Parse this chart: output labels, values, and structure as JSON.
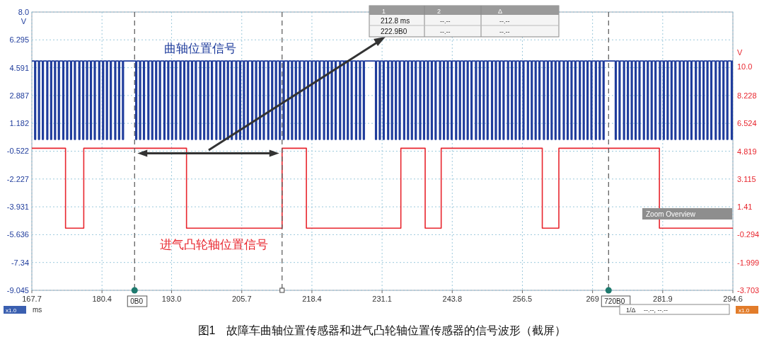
{
  "chart_data": {
    "type": "line",
    "xlabel": "ms",
    "ylabel": "V",
    "y2label": "V",
    "xlim": [
      167.7,
      294.6
    ],
    "xticks": [
      167.7,
      180.4,
      {
        "value": 193,
        "label": "193.0"
      },
      205.7,
      218.4,
      231.1,
      243.8,
      256.5,
      {
        "value": 269.2,
        "label": "269"
      },
      281.9,
      294.6
    ],
    "ylim": [
      -9.045,
      8
    ],
    "yticks": [
      {
        "value": 8,
        "label": "8.0"
      },
      6.295,
      4.591,
      2.887,
      1.182,
      -0.522,
      -2.227,
      -3.931,
      -5.636,
      -7.34,
      -9.045
    ],
    "y2lim": [
      -3.703,
      13.342
    ],
    "y2ticks": [
      {
        "value": 10,
        "label": "10.0"
      },
      8.228,
      6.524,
      4.819,
      3.115,
      1.41,
      -0.294,
      -1.999,
      -3.703
    ],
    "grid": true,
    "series": [
      {
        "name": "曲轴位置信号",
        "type": "step",
        "color": "#1f3c9c",
        "x": [
          167.7,
          168.2,
          168.4,
          168.9,
          169.1,
          169.6,
          169.8,
          170.4,
          170.6,
          171.1,
          171.3,
          171.8,
          172.0,
          172.5,
          172.7,
          173.3,
          173.5,
          174.0,
          174.2,
          174.7,
          174.9,
          175.4,
          175.6,
          176.2,
          176.4,
          176.9,
          177.1,
          177.6,
          177.8,
          178.3,
          178.5,
          179.0,
          179.2,
          179.8,
          180.0,
          180.5,
          180.7,
          181.2,
          181.4,
          181.9,
          182.1,
          182.7,
          182.9,
          183.4,
          183.6,
          184.1,
          184.3,
          186.5,
          186.7,
          187.2,
          187.4,
          187.9,
          188.1,
          188.7,
          188.9,
          189.4,
          189.6,
          190.1,
          190.3,
          190.8,
          191.0,
          191.6,
          191.8,
          192.3,
          192.5,
          193.0,
          193.2,
          193.7,
          193.9,
          194.5,
          194.7,
          195.2,
          195.4,
          195.9,
          196.1,
          196.6,
          196.8,
          197.3,
          197.5,
          198.1,
          198.3,
          198.8,
          199.0,
          199.5,
          199.7,
          200.2,
          200.4,
          201.0,
          201.2,
          201.7,
          201.9,
          202.4,
          202.6,
          203.1,
          203.3,
          203.8,
          204.0,
          204.6,
          204.8,
          205.3,
          205.5,
          206.0,
          206.2,
          206.7,
          206.9,
          207.5,
          207.7,
          208.2,
          208.4,
          208.9,
          209.1,
          209.6,
          209.8,
          210.4,
          210.6,
          211.1,
          211.3,
          211.8,
          212.0,
          212.5,
          212.7,
          213.2,
          213.4,
          214.0,
          214.2,
          214.7,
          214.9,
          215.4,
          215.6,
          216.1,
          216.3,
          216.9,
          217.1,
          217.6,
          217.8,
          218.3,
          218.5,
          219.0,
          219.2,
          219.7,
          219.9,
          220.5,
          220.7,
          221.2,
          221.4,
          221.9,
          222.1,
          222.6,
          222.8,
          223.4,
          223.6,
          224.1,
          224.3,
          224.8,
          225.0,
          225.5,
          225.7,
          226.3,
          226.5,
          227.0,
          227.2,
          227.7,
          227.9,
          229.9,
          230.1,
          230.6,
          230.8,
          231.3,
          231.5,
          232.1,
          232.3,
          232.8,
          233.0,
          233.5,
          233.7,
          234.2,
          234.4,
          235.0,
          235.2,
          235.7,
          235.9,
          236.4,
          236.6,
          237.1,
          237.3,
          237.9,
          238.1,
          238.6,
          238.8,
          239.3,
          239.5,
          240.0,
          240.2,
          240.7,
          240.9,
          241.5,
          241.7,
          242.2,
          242.4,
          242.9,
          243.1,
          243.6,
          243.8,
          244.4,
          244.6,
          245.1,
          245.3,
          245.8,
          246.0,
          246.5,
          246.7,
          247.2,
          247.4,
          248.0,
          248.2,
          248.7,
          248.9,
          249.4,
          249.6,
          250.1,
          250.3,
          250.9,
          251.1,
          251.6,
          251.8,
          252.3,
          252.5,
          253.0,
          253.2,
          253.8,
          254.0,
          254.5,
          254.7,
          255.2,
          255.4,
          255.9,
          256.1,
          256.6,
          256.8,
          257.4,
          257.6,
          258.1,
          258.3,
          258.8,
          259.0,
          259.5,
          259.7,
          260.3,
          260.5,
          261.0,
          261.2,
          261.7,
          261.9,
          262.4,
          262.6,
          263.1,
          263.3,
          263.9,
          264.1,
          264.6,
          264.8,
          265.3,
          265.5,
          266.0,
          266.2,
          266.8,
          267.0,
          267.5,
          267.7,
          268.2,
          268.4,
          268.9,
          269.1,
          269.7,
          269.9,
          270.4,
          270.6,
          271.1,
          271.3,
          273.3,
          273.5,
          274.0,
          274.2,
          274.8,
          275.0,
          275.5,
          275.7,
          276.2,
          276.4,
          276.9,
          277.1,
          277.6,
          277.8,
          278.4,
          278.6,
          279.1,
          279.3,
          279.8,
          280.0,
          280.5,
          280.7,
          281.3,
          281.5,
          282.0,
          282.2,
          282.7,
          282.9,
          283.4,
          283.6,
          284.1,
          284.3,
          284.9,
          285.1,
          285.6,
          285.8,
          286.3,
          286.5,
          287.0,
          287.2,
          287.8,
          288.0,
          288.5,
          288.7,
          289.2,
          289.4,
          289.9,
          290.1,
          290.6,
          290.8,
          291.4,
          291.6,
          292.1,
          292.3,
          292.8,
          293.0,
          293.5,
          293.7,
          294.3,
          294.5,
          294.6
        ],
        "values": [
          5.0,
          0.2,
          5.0,
          0.2,
          5.0,
          0.2,
          5.0,
          0.2,
          5.0,
          0.2,
          5.0,
          0.2,
          5.0,
          0.2,
          5.0,
          0.2,
          5.0,
          0.2,
          5.0,
          0.2,
          5.0,
          0.2,
          5.0,
          0.2,
          5.0,
          0.2,
          5.0,
          0.2,
          5.0,
          0.2,
          5.0,
          0.2,
          5.0,
          0.2,
          5.0,
          0.2,
          5.0,
          0.2,
          5.0,
          0.2,
          5.0,
          0.2,
          5.0,
          0.2,
          5.0,
          0.2,
          5.0,
          0.2,
          5.0,
          0.2,
          5.0,
          0.2,
          5.0,
          0.2,
          5.0,
          0.2,
          5.0,
          0.2,
          5.0,
          0.2,
          5.0,
          0.2,
          5.0,
          0.2,
          5.0,
          0.2,
          5.0,
          0.2,
          5.0,
          0.2,
          5.0,
          0.2,
          5.0,
          0.2,
          5.0,
          0.2,
          5.0,
          0.2,
          5.0,
          0.2,
          5.0,
          0.2,
          5.0,
          0.2,
          5.0,
          0.2,
          5.0,
          0.2,
          5.0,
          0.2,
          5.0,
          0.2,
          5.0,
          0.2,
          5.0,
          0.2,
          5.0,
          0.2,
          5.0,
          0.2,
          5.0,
          0.2,
          5.0,
          0.2,
          5.0,
          0.2,
          5.0,
          0.2,
          5.0,
          0.2,
          5.0,
          0.2,
          5.0,
          0.2,
          5.0,
          0.2,
          5.0,
          0.2,
          5.0,
          0.2,
          5.0,
          0.2,
          5.0,
          0.2,
          5.0,
          0.2,
          5.0,
          0.2,
          5.0,
          0.2,
          5.0,
          0.2,
          5.0,
          0.2,
          5.0,
          0.2,
          5.0,
          0.2,
          5.0,
          0.2,
          5.0,
          0.2,
          5.0,
          0.2,
          5.0,
          0.2,
          5.0,
          0.2,
          5.0,
          0.2,
          5.0,
          0.2,
          5.0,
          0.2,
          5.0,
          0.2,
          5.0,
          0.2,
          5.0,
          0.2,
          5.0,
          0.2,
          5.0,
          0.2,
          5.0,
          0.2,
          5.0,
          0.2,
          5.0,
          0.2,
          5.0,
          0.2,
          5.0,
          0.2,
          5.0,
          0.2,
          5.0,
          0.2,
          5.0,
          0.2,
          5.0,
          0.2,
          5.0,
          0.2,
          5.0,
          0.2,
          5.0,
          0.2,
          5.0,
          0.2,
          5.0,
          0.2,
          5.0,
          0.2,
          5.0,
          0.2,
          5.0,
          0.2,
          5.0,
          0.2,
          5.0,
          0.2,
          5.0,
          0.2,
          5.0,
          0.2,
          5.0,
          0.2,
          5.0,
          0.2,
          5.0,
          0.2,
          5.0,
          0.2,
          5.0,
          0.2,
          5.0,
          0.2,
          5.0,
          0.2,
          5.0,
          0.2,
          5.0,
          0.2,
          5.0,
          0.2,
          5.0,
          0.2,
          5.0,
          0.2,
          5.0,
          0.2,
          5.0,
          0.2,
          5.0,
          0.2,
          5.0,
          0.2,
          5.0,
          0.2,
          5.0,
          0.2,
          5.0,
          0.2,
          5.0,
          0.2,
          5.0,
          0.2,
          5.0,
          0.2,
          5.0,
          0.2,
          5.0,
          0.2,
          5.0,
          0.2,
          5.0,
          0.2,
          5.0,
          0.2,
          5.0,
          0.2,
          5.0,
          0.2,
          5.0,
          0.2,
          5.0,
          0.2,
          5.0,
          0.2,
          5.0,
          0.2,
          5.0,
          0.2,
          5.0,
          0.2,
          5.0,
          0.2,
          5.0,
          0.2,
          5.0,
          0.2,
          5.0,
          0.2,
          5.0,
          0.2,
          5.0,
          0.2,
          5.0,
          0.2,
          5.0,
          0.2,
          5.0,
          0.2,
          5.0,
          0.2,
          5.0,
          0.2,
          5.0,
          0.2,
          5.0,
          0.2,
          5.0,
          0.2,
          5.0,
          0.2,
          5.0,
          0.2,
          5.0,
          0.2,
          5.0,
          0.2,
          5.0,
          0.2,
          5.0,
          0.2,
          5.0,
          0.2,
          5.0,
          0.2,
          5.0,
          0.2,
          5.0,
          0.2,
          5.0,
          0.2,
          5.0,
          0.2,
          5.0,
          0.2,
          5.0,
          0.2,
          5.0,
          0.2,
          5.0,
          0.2,
          5.0,
          0.2,
          5.0,
          5.0
        ]
      },
      {
        "name": "进气凸轮轴位置信号",
        "type": "step",
        "axis": "y2",
        "color": "#e8262e",
        "x": [
          167.7,
          173.8,
          177.1,
          195.7,
          213.0,
          217.4,
          234.5,
          238.9,
          241.8,
          260.1,
          263.1,
          281.3,
          294.6
        ],
        "values": [
          5.0,
          0.1,
          5.0,
          0.1,
          5.0,
          0.1,
          5.0,
          0.1,
          5.0,
          0.1,
          5.0,
          0.1,
          0.1
        ]
      }
    ],
    "ref_lines": [
      {
        "axis": "x",
        "value": 186.3,
        "label": "0B0",
        "color": "#555555",
        "line_style": "dashed"
      },
      {
        "axis": "x",
        "value": 213.0,
        "label": null,
        "color": "#555555",
        "line_style": "dashed"
      },
      {
        "axis": "x",
        "value": 272.1,
        "label": "720B0",
        "color": "#555555",
        "line_style": "dashed"
      }
    ],
    "annotations": [
      "212.8 ms",
      "222.9B0",
      "1",
      "2",
      "Δ",
      "--.--",
      "--.--",
      "--.--",
      "--.--",
      "Zoom Overview",
      "x1.0",
      "x1.0",
      "1/Δ",
      "--.--, --.--",
      "图1　故障车曲轴位置传感器和进气凸轮轴位置传感器的信号波形（截屏）"
    ]
  }
}
